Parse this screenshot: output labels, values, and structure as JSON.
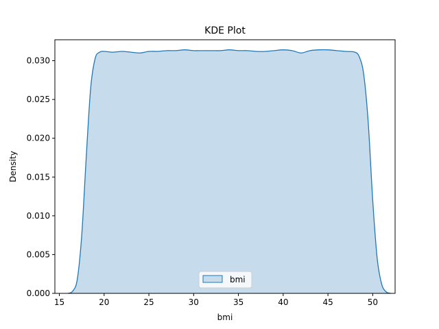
{
  "chart_data": {
    "type": "area",
    "title": "KDE Plot",
    "xlabel": "bmi",
    "ylabel": "Density",
    "xlim": [
      14.5,
      52.5
    ],
    "ylim": [
      0,
      0.0327
    ],
    "xticks": [
      "15",
      "20",
      "25",
      "30",
      "35",
      "40",
      "45",
      "50"
    ],
    "yticks": [
      "0.000",
      "0.005",
      "0.010",
      "0.015",
      "0.020",
      "0.025",
      "0.030"
    ],
    "grid": false,
    "legend_position": "lower center",
    "series": [
      {
        "name": "bmi",
        "color": "#1f77b4",
        "fill_color": "#c6dcec",
        "x": [
          16.0,
          16.5,
          17.0,
          17.5,
          18.0,
          18.5,
          19.0,
          19.5,
          20.0,
          21.0,
          22.0,
          23.0,
          24.0,
          25.0,
          26.0,
          27.0,
          28.0,
          29.0,
          30.0,
          31.0,
          32.0,
          33.0,
          34.0,
          35.0,
          36.0,
          37.0,
          38.0,
          39.0,
          40.0,
          41.0,
          42.0,
          43.0,
          44.0,
          45.0,
          46.0,
          47.0,
          48.0,
          48.5,
          49.0,
          49.5,
          50.0,
          50.5,
          51.0,
          51.5,
          52.0
        ],
        "y": [
          0.0,
          0.0003,
          0.0018,
          0.0075,
          0.0175,
          0.0265,
          0.0303,
          0.0311,
          0.0312,
          0.0311,
          0.0312,
          0.0311,
          0.031,
          0.0312,
          0.0312,
          0.0313,
          0.0313,
          0.0314,
          0.0313,
          0.0313,
          0.0313,
          0.0313,
          0.0314,
          0.0313,
          0.0313,
          0.0312,
          0.0312,
          0.0313,
          0.0314,
          0.0313,
          0.031,
          0.0313,
          0.0314,
          0.0314,
          0.0313,
          0.0312,
          0.0311,
          0.0305,
          0.0282,
          0.022,
          0.012,
          0.0045,
          0.0012,
          0.0002,
          0.0
        ]
      }
    ]
  }
}
